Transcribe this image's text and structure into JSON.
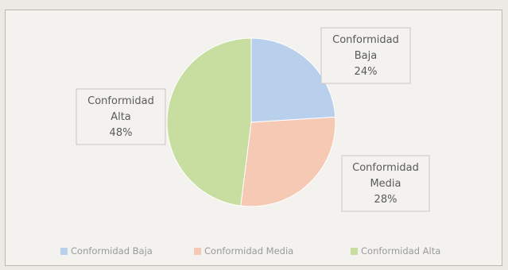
{
  "chart_data": {
    "type": "pie",
    "title": "",
    "categories": [
      "Conformidad Baja",
      "Conformidad Media",
      "Conformidad Alta"
    ],
    "values": [
      24,
      28,
      48
    ],
    "unit": "%",
    "colors": [
      "#b9d0ec",
      "#f6c9b5",
      "#c8dea0"
    ],
    "start_angle_deg": 0,
    "direction": "clockwise",
    "legend_position": "bottom",
    "data_labels": [
      {
        "line1": "Conformidad",
        "line2": "Baja",
        "value": "24%"
      },
      {
        "line1": "Conformidad",
        "line2": "Media",
        "value": "28%"
      },
      {
        "line1": "Conformidad",
        "line2": "Alta",
        "value": "48%"
      }
    ]
  }
}
